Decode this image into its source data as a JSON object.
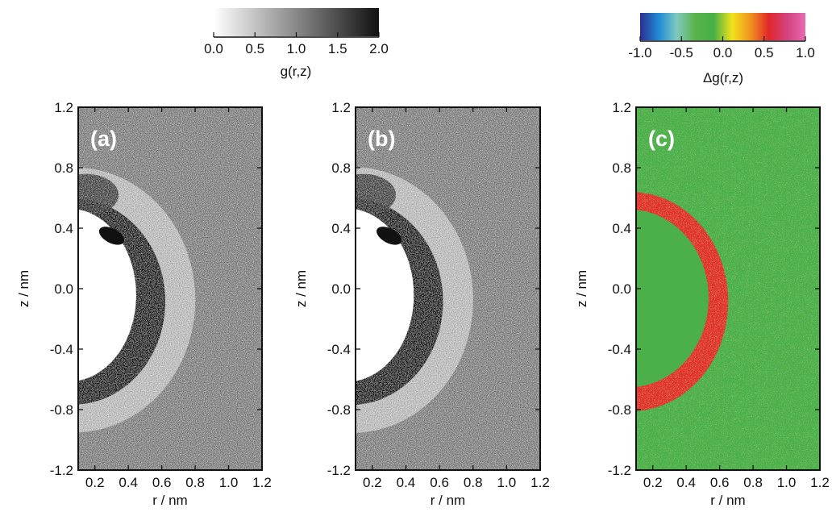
{
  "colorbars": {
    "gray": {
      "label": "g(r,z)",
      "ticks": [
        "0.0",
        "0.5",
        "1.0",
        "1.5",
        "2.0"
      ],
      "range": [
        0.0,
        2.0
      ]
    },
    "diff": {
      "label": "Δg(r,z)",
      "ticks": [
        "-1.0",
        "-0.5",
        "0.0",
        "0.5",
        "1.0"
      ],
      "range": [
        -1.0,
        1.0
      ],
      "colors": [
        "#2b2f8f",
        "#1f8ad6",
        "#7ec9c0",
        "#5cb24a",
        "#43b046",
        "#f2e21c",
        "#f0951e",
        "#e2262a",
        "#d3427e",
        "#e86ab2"
      ]
    }
  },
  "chart_data": [
    {
      "type": "heatmap",
      "panel_label": "(a)",
      "colormap": "gray",
      "xlabel": "r / nm",
      "ylabel": "z / nm",
      "xlim": [
        0.1,
        1.2
      ],
      "ylim": [
        -1.2,
        1.2
      ],
      "xticks": [
        "0.2",
        "0.4",
        "0.6",
        "0.8",
        "1.0",
        "1.2"
      ],
      "yticks": [
        "1.2",
        "0.8",
        "0.4",
        "0.0",
        "-0.4",
        "-0.8",
        "-1.2"
      ],
      "features": {
        "background_g": 1.0,
        "core": {
          "description": "excluded region g≈0",
          "center_r": 0.1,
          "center_z": 0.0,
          "radius": 0.45
        },
        "first_shell": {
          "g": 2.0,
          "inner_radius": 0.45,
          "outer_radius": 0.55
        },
        "second_shell": {
          "g": 0.5,
          "inner_radius": 0.55,
          "outer_radius": 0.72
        }
      }
    },
    {
      "type": "heatmap",
      "panel_label": "(b)",
      "colormap": "gray",
      "xlabel": "r / nm",
      "ylabel": "z / nm",
      "xlim": [
        0.1,
        1.2
      ],
      "ylim": [
        -1.2,
        1.2
      ],
      "xticks": [
        "0.2",
        "0.4",
        "0.6",
        "0.8",
        "1.0",
        "1.2"
      ],
      "yticks": [
        "1.2",
        "0.8",
        "0.4",
        "0.0",
        "-0.4",
        "-0.8",
        "-1.2"
      ],
      "features": {
        "background_g": 1.0,
        "core": {
          "description": "excluded region g≈0",
          "center_r": 0.1,
          "center_z": 0.0,
          "radius": 0.45
        },
        "first_shell": {
          "g": 2.0,
          "inner_radius": 0.45,
          "outer_radius": 0.55
        },
        "second_shell": {
          "g": 0.5,
          "inner_radius": 0.55,
          "outer_radius": 0.72
        }
      }
    },
    {
      "type": "heatmap",
      "panel_label": "(c)",
      "colormap": "diff",
      "xlabel": "r / nm",
      "ylabel": "z / nm",
      "xlim": [
        0.1,
        1.2
      ],
      "ylim": [
        -1.2,
        1.2
      ],
      "xticks": [
        "0.2",
        "0.4",
        "0.6",
        "0.8",
        "1.0",
        "1.2"
      ],
      "yticks": [
        "1.2",
        "0.8",
        "0.4",
        "0.0",
        "-0.4",
        "-0.8",
        "-1.2"
      ],
      "features": {
        "background_dg": 0.0,
        "difference_band": {
          "dg": 0.8,
          "inner_radius": 0.45,
          "outer_radius": 0.58
        }
      }
    }
  ]
}
